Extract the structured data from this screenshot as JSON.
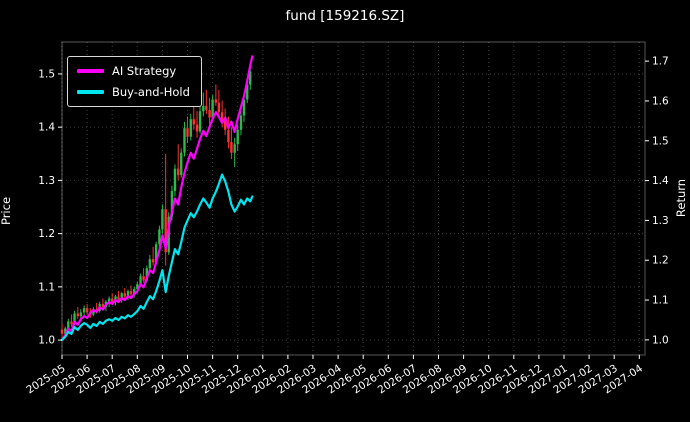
{
  "chart_data": {
    "type": "candlestick+line",
    "title": "fund [159216.SZ]",
    "ylabel_left": "Price",
    "ylabel_right": "Return",
    "x_unit": "months since 2025-05",
    "x_tick_labels": [
      "2025-05",
      "2025-06",
      "2025-07",
      "2025-08",
      "2025-09",
      "2025-10",
      "2025-11",
      "2025-12",
      "2026-01",
      "2026-02",
      "2026-03",
      "2026-04",
      "2026-05",
      "2026-06",
      "2026-07",
      "2026-08",
      "2026-09",
      "2026-10",
      "2026-11",
      "2026-12",
      "2027-01",
      "2027-02",
      "2027-03",
      "2027-04"
    ],
    "y_ticks_left": [
      "1.0",
      "1.1",
      "1.2",
      "1.3",
      "1.4",
      "1.5"
    ],
    "y_ticks_right": [
      "1.0",
      "1.1",
      "1.2",
      "1.3",
      "1.4",
      "1.5",
      "1.6",
      "1.7"
    ],
    "ylim_left": [
      0.972,
      1.56
    ],
    "ylim_right": [
      0.962,
      1.748
    ],
    "grid": "dotted",
    "legend_position": "upper-left",
    "legend": [
      {
        "label": "AI Strategy",
        "color": "#ff00ff"
      },
      {
        "label": "Buy-and-Hold",
        "color": "#00e5ee"
      }
    ],
    "colors": {
      "bg": "#000000",
      "text": "#ffffff",
      "grid": "#3f3f3f",
      "up": "#2db84d",
      "down": "#ff3131"
    },
    "candles": [
      [
        0.0,
        1.02,
        1.03,
        1.005,
        1.012
      ],
      [
        0.13,
        1.012,
        1.025,
        1.008,
        1.022
      ],
      [
        0.25,
        1.022,
        1.04,
        1.018,
        1.035
      ],
      [
        0.38,
        1.035,
        1.048,
        1.025,
        1.03
      ],
      [
        0.5,
        1.03,
        1.055,
        1.028,
        1.05
      ],
      [
        0.63,
        1.05,
        1.062,
        1.04,
        1.045
      ],
      [
        0.75,
        1.045,
        1.058,
        1.035,
        1.052
      ],
      [
        0.88,
        1.052,
        1.065,
        1.045,
        1.06
      ],
      [
        1.0,
        1.06,
        1.068,
        1.048,
        1.052
      ],
      [
        1.13,
        1.052,
        1.06,
        1.042,
        1.048
      ],
      [
        1.25,
        1.048,
        1.062,
        1.045,
        1.058
      ],
      [
        1.38,
        1.058,
        1.07,
        1.05,
        1.055
      ],
      [
        1.5,
        1.055,
        1.072,
        1.052,
        1.068
      ],
      [
        1.63,
        1.068,
        1.078,
        1.058,
        1.062
      ],
      [
        1.75,
        1.062,
        1.075,
        1.055,
        1.072
      ],
      [
        1.88,
        1.072,
        1.082,
        1.062,
        1.078
      ],
      [
        2.0,
        1.078,
        1.088,
        1.068,
        1.072
      ],
      [
        2.13,
        1.072,
        1.085,
        1.065,
        1.082
      ],
      [
        2.25,
        1.082,
        1.092,
        1.072,
        1.076
      ],
      [
        2.38,
        1.076,
        1.09,
        1.07,
        1.088
      ],
      [
        2.5,
        1.088,
        1.098,
        1.078,
        1.082
      ],
      [
        2.63,
        1.082,
        1.095,
        1.075,
        1.092
      ],
      [
        2.75,
        1.092,
        1.102,
        1.082,
        1.086
      ],
      [
        2.88,
        1.086,
        1.1,
        1.08,
        1.096
      ],
      [
        3.0,
        1.096,
        1.11,
        1.088,
        1.105
      ],
      [
        3.13,
        1.105,
        1.125,
        1.1,
        1.12
      ],
      [
        3.25,
        1.12,
        1.135,
        1.108,
        1.112
      ],
      [
        3.38,
        1.112,
        1.14,
        1.108,
        1.135
      ],
      [
        3.5,
        1.135,
        1.16,
        1.128,
        1.152
      ],
      [
        3.63,
        1.152,
        1.175,
        1.14,
        1.146
      ],
      [
        3.75,
        1.146,
        1.185,
        1.142,
        1.18
      ],
      [
        3.88,
        1.18,
        1.215,
        1.172,
        1.208
      ],
      [
        4.0,
        1.208,
        1.255,
        1.2,
        1.246
      ],
      [
        4.13,
        1.246,
        1.35,
        1.14,
        1.165
      ],
      [
        4.25,
        1.165,
        1.24,
        1.16,
        1.232
      ],
      [
        4.38,
        1.232,
        1.29,
        1.225,
        1.28
      ],
      [
        4.5,
        1.28,
        1.33,
        1.27,
        1.322
      ],
      [
        4.63,
        1.322,
        1.368,
        1.3,
        1.31
      ],
      [
        4.75,
        1.31,
        1.36,
        1.305,
        1.352
      ],
      [
        4.88,
        1.352,
        1.41,
        1.345,
        1.398
      ],
      [
        5.0,
        1.398,
        1.42,
        1.37,
        1.382
      ],
      [
        5.13,
        1.382,
        1.425,
        1.375,
        1.415
      ],
      [
        5.25,
        1.415,
        1.445,
        1.395,
        1.405
      ],
      [
        5.38,
        1.405,
        1.43,
        1.38,
        1.392
      ],
      [
        5.5,
        1.392,
        1.44,
        1.388,
        1.43
      ],
      [
        5.63,
        1.43,
        1.465,
        1.42,
        1.44
      ],
      [
        5.75,
        1.44,
        1.47,
        1.425,
        1.432
      ],
      [
        5.88,
        1.432,
        1.455,
        1.405,
        1.418
      ],
      [
        6.0,
        1.418,
        1.46,
        1.412,
        1.452
      ],
      [
        6.13,
        1.452,
        1.48,
        1.44,
        1.446
      ],
      [
        6.25,
        1.446,
        1.47,
        1.42,
        1.428
      ],
      [
        6.38,
        1.428,
        1.45,
        1.4,
        1.412
      ],
      [
        6.5,
        1.412,
        1.435,
        1.385,
        1.395
      ],
      [
        6.63,
        1.395,
        1.42,
        1.36,
        1.372
      ],
      [
        6.75,
        1.372,
        1.4,
        1.34,
        1.352
      ],
      [
        6.88,
        1.352,
        1.38,
        1.325,
        1.368
      ],
      [
        7.0,
        1.368,
        1.405,
        1.355,
        1.395
      ],
      [
        7.13,
        1.395,
        1.43,
        1.385,
        1.422
      ],
      [
        7.25,
        1.422,
        1.46,
        1.41,
        1.452
      ],
      [
        7.38,
        1.452,
        1.49,
        1.445,
        1.48
      ],
      [
        7.5,
        1.48,
        1.52,
        1.47,
        1.505
      ]
    ],
    "series": [
      {
        "name": "AI Strategy",
        "axis": "right",
        "color": "#ff00ff",
        "points": [
          [
            0.0,
            1.0
          ],
          [
            0.13,
            1.012
          ],
          [
            0.25,
            1.028
          ],
          [
            0.38,
            1.022
          ],
          [
            0.5,
            1.045
          ],
          [
            0.63,
            1.038
          ],
          [
            0.75,
            1.052
          ],
          [
            0.88,
            1.06
          ],
          [
            1.0,
            1.055
          ],
          [
            1.13,
            1.068
          ],
          [
            1.25,
            1.075
          ],
          [
            1.38,
            1.07
          ],
          [
            1.5,
            1.082
          ],
          [
            1.63,
            1.076
          ],
          [
            1.75,
            1.088
          ],
          [
            1.88,
            1.095
          ],
          [
            2.0,
            1.09
          ],
          [
            2.13,
            1.1
          ],
          [
            2.25,
            1.095
          ],
          [
            2.38,
            1.105
          ],
          [
            2.5,
            1.1
          ],
          [
            2.63,
            1.11
          ],
          [
            2.75,
            1.105
          ],
          [
            2.88,
            1.115
          ],
          [
            3.0,
            1.122
          ],
          [
            3.13,
            1.14
          ],
          [
            3.25,
            1.132
          ],
          [
            3.38,
            1.155
          ],
          [
            3.5,
            1.175
          ],
          [
            3.63,
            1.168
          ],
          [
            3.75,
            1.195
          ],
          [
            3.88,
            1.225
          ],
          [
            4.0,
            1.262
          ],
          [
            4.13,
            1.23
          ],
          [
            4.25,
            1.285
          ],
          [
            4.38,
            1.32
          ],
          [
            4.5,
            1.355
          ],
          [
            4.63,
            1.34
          ],
          [
            4.75,
            1.382
          ],
          [
            4.88,
            1.42
          ],
          [
            5.0,
            1.445
          ],
          [
            5.13,
            1.47
          ],
          [
            5.25,
            1.455
          ],
          [
            5.38,
            1.48
          ],
          [
            5.5,
            1.505
          ],
          [
            5.63,
            1.525
          ],
          [
            5.75,
            1.512
          ],
          [
            5.88,
            1.535
          ],
          [
            6.0,
            1.555
          ],
          [
            6.13,
            1.572
          ],
          [
            6.25,
            1.56
          ],
          [
            6.38,
            1.545
          ],
          [
            6.5,
            1.558
          ],
          [
            6.63,
            1.532
          ],
          [
            6.75,
            1.548
          ],
          [
            6.88,
            1.522
          ],
          [
            7.0,
            1.555
          ],
          [
            7.13,
            1.585
          ],
          [
            7.25,
            1.612
          ],
          [
            7.38,
            1.65
          ],
          [
            7.5,
            1.69
          ],
          [
            7.58,
            1.712
          ]
        ]
      },
      {
        "name": "Buy-and-Hold",
        "axis": "right",
        "color": "#00e5ee",
        "points": [
          [
            0.0,
            1.0
          ],
          [
            0.13,
            1.008
          ],
          [
            0.25,
            1.02
          ],
          [
            0.38,
            1.015
          ],
          [
            0.5,
            1.032
          ],
          [
            0.63,
            1.025
          ],
          [
            0.75,
            1.035
          ],
          [
            0.88,
            1.042
          ],
          [
            1.0,
            1.038
          ],
          [
            1.13,
            1.03
          ],
          [
            1.25,
            1.04
          ],
          [
            1.38,
            1.035
          ],
          [
            1.5,
            1.045
          ],
          [
            1.63,
            1.04
          ],
          [
            1.75,
            1.048
          ],
          [
            1.88,
            1.052
          ],
          [
            2.0,
            1.048
          ],
          [
            2.13,
            1.055
          ],
          [
            2.25,
            1.05
          ],
          [
            2.38,
            1.058
          ],
          [
            2.5,
            1.054
          ],
          [
            2.63,
            1.062
          ],
          [
            2.75,
            1.058
          ],
          [
            2.88,
            1.065
          ],
          [
            3.0,
            1.072
          ],
          [
            3.13,
            1.085
          ],
          [
            3.25,
            1.078
          ],
          [
            3.38,
            1.095
          ],
          [
            3.5,
            1.11
          ],
          [
            3.63,
            1.102
          ],
          [
            3.75,
            1.122
          ],
          [
            3.88,
            1.148
          ],
          [
            4.0,
            1.175
          ],
          [
            4.13,
            1.12
          ],
          [
            4.25,
            1.16
          ],
          [
            4.38,
            1.195
          ],
          [
            4.5,
            1.228
          ],
          [
            4.63,
            1.215
          ],
          [
            4.75,
            1.245
          ],
          [
            4.88,
            1.282
          ],
          [
            5.0,
            1.3
          ],
          [
            5.13,
            1.318
          ],
          [
            5.25,
            1.308
          ],
          [
            5.38,
            1.322
          ],
          [
            5.5,
            1.34
          ],
          [
            5.63,
            1.355
          ],
          [
            5.75,
            1.345
          ],
          [
            5.88,
            1.332
          ],
          [
            6.0,
            1.355
          ],
          [
            6.13,
            1.372
          ],
          [
            6.25,
            1.392
          ],
          [
            6.38,
            1.415
          ],
          [
            6.5,
            1.398
          ],
          [
            6.63,
            1.372
          ],
          [
            6.75,
            1.34
          ],
          [
            6.88,
            1.322
          ],
          [
            7.0,
            1.335
          ],
          [
            7.13,
            1.352
          ],
          [
            7.25,
            1.34
          ],
          [
            7.38,
            1.355
          ],
          [
            7.5,
            1.348
          ],
          [
            7.58,
            1.36
          ]
        ]
      }
    ]
  }
}
